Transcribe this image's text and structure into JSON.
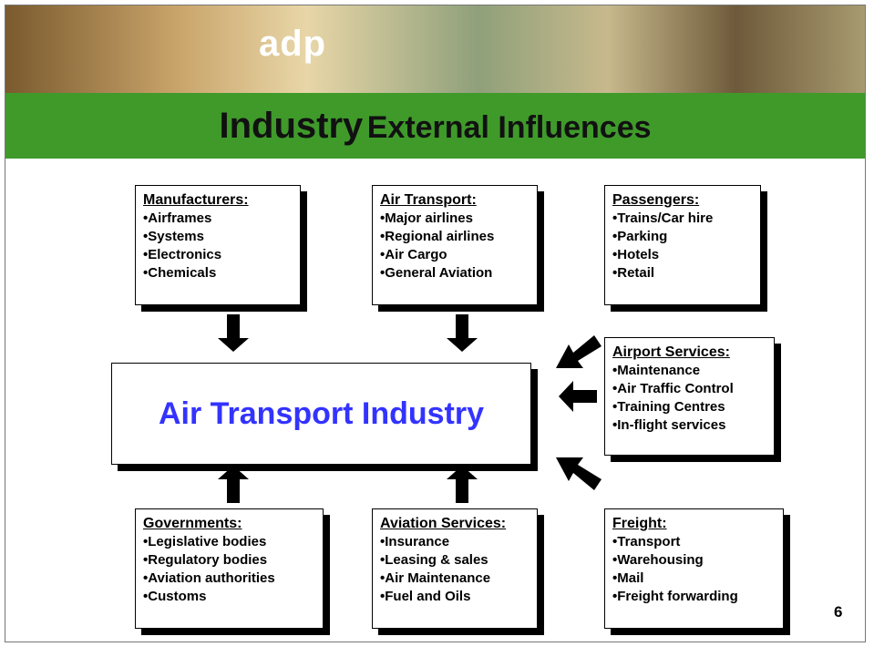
{
  "header": {
    "logo": "adp",
    "title_main": "Industry",
    "title_rest": "External Influences"
  },
  "center": {
    "label": "Air Transport Industry"
  },
  "boxes": [
    {
      "heading": "Manufacturers:",
      "items": [
        "•Airframes",
        "•Systems",
        "•Electronics",
        "•Chemicals"
      ]
    },
    {
      "heading": "Air Transport:",
      "items": [
        "•Major airlines",
        "•Regional airlines",
        "•Air Cargo",
        "•General Aviation"
      ]
    },
    {
      "heading": "Passengers:",
      "items": [
        "•Trains/Car hire",
        "•Parking",
        "•Hotels",
        "•Retail"
      ]
    },
    {
      "heading": "Airport Services:",
      "items": [
        "•Maintenance",
        "•Air Traffic Control",
        "•Training Centres",
        "•In-flight services"
      ]
    },
    {
      "heading": "Governments:",
      "items": [
        "•Legislative bodies",
        "•Regulatory bodies",
        "•Aviation authorities",
        "•Customs"
      ]
    },
    {
      "heading": "Aviation Services:",
      "items": [
        "•Insurance",
        "•Leasing & sales",
        "•Air Maintenance",
        "•Fuel and Oils"
      ]
    },
    {
      "heading": "Freight:",
      "items": [
        "•Transport",
        "•Warehousing",
        "•Mail",
        "•Freight forwarding"
      ]
    }
  ],
  "page_number": "6"
}
